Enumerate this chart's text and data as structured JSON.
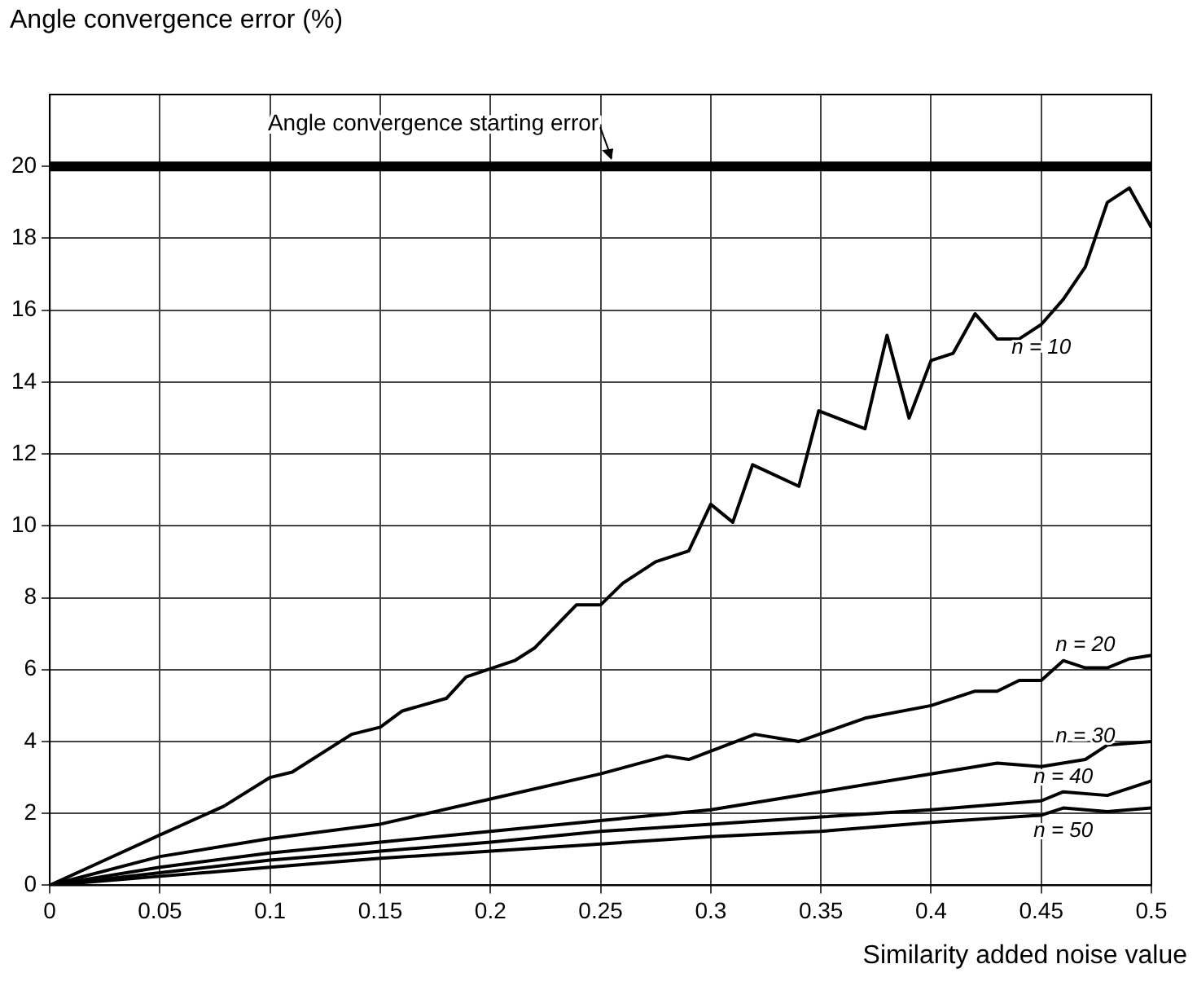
{
  "chart_data": {
    "type": "line",
    "ylabel": "Angle convergence error (%)",
    "xlabel": "Similarity added noise value",
    "xlim": [
      0,
      0.5
    ],
    "xticks": [
      0,
      0.05,
      0.1,
      0.15,
      0.2,
      0.25,
      0.3,
      0.35,
      0.4,
      0.45,
      0.5
    ],
    "ylim": [
      0,
      22
    ],
    "yticks": [
      0,
      2,
      4,
      6,
      8,
      10,
      12,
      14,
      16,
      18,
      20
    ],
    "grid": true,
    "marker": "none",
    "line_style": "solid",
    "series": [
      {
        "name": "n = 10",
        "color": "#000000",
        "x": [
          0,
          0.025,
          0.05,
          0.079,
          0.1,
          0.11,
          0.137,
          0.15,
          0.16,
          0.18,
          0.189,
          0.211,
          0.22,
          0.239,
          0.25,
          0.26,
          0.275,
          0.29,
          0.3,
          0.31,
          0.319,
          0.34,
          0.349,
          0.37,
          0.38,
          0.39,
          0.4,
          0.41,
          0.42,
          0.43,
          0.44,
          0.45,
          0.46,
          0.47,
          0.48,
          0.49,
          0.5
        ],
        "values": [
          0,
          0.7,
          1.4,
          2.2,
          3.0,
          3.15,
          4.2,
          4.4,
          4.85,
          5.2,
          5.8,
          6.25,
          6.6,
          7.8,
          7.8,
          8.4,
          9.0,
          9.3,
          10.6,
          10.1,
          11.7,
          11.1,
          13.2,
          12.7,
          15.3,
          13.0,
          14.6,
          14.8,
          15.9,
          15.2,
          15.2,
          15.6,
          16.3,
          17.2,
          19.0,
          19.4,
          18.3
        ]
      },
      {
        "name": "n = 20",
        "color": "#000000",
        "x": [
          0,
          0.05,
          0.1,
          0.15,
          0.2,
          0.25,
          0.28,
          0.29,
          0.32,
          0.34,
          0.37,
          0.4,
          0.42,
          0.43,
          0.44,
          0.45,
          0.46,
          0.47,
          0.48,
          0.49,
          0.5
        ],
        "values": [
          0,
          0.8,
          1.3,
          1.7,
          2.4,
          3.1,
          3.6,
          3.5,
          4.2,
          4.0,
          4.65,
          5.0,
          5.4,
          5.4,
          5.7,
          5.7,
          6.25,
          6.05,
          6.05,
          6.3,
          6.4
        ]
      },
      {
        "name": "n = 30",
        "color": "#000000",
        "x": [
          0,
          0.05,
          0.1,
          0.15,
          0.2,
          0.25,
          0.3,
          0.35,
          0.4,
          0.43,
          0.45,
          0.47,
          0.48,
          0.5
        ],
        "values": [
          0,
          0.5,
          0.9,
          1.2,
          1.5,
          1.8,
          2.1,
          2.6,
          3.1,
          3.4,
          3.3,
          3.5,
          3.9,
          4.0
        ]
      },
      {
        "name": "n = 40",
        "color": "#000000",
        "x": [
          0,
          0.05,
          0.1,
          0.15,
          0.2,
          0.25,
          0.3,
          0.35,
          0.4,
          0.45,
          0.46,
          0.48,
          0.5
        ],
        "values": [
          0,
          0.35,
          0.7,
          0.95,
          1.2,
          1.5,
          1.7,
          1.9,
          2.1,
          2.35,
          2.6,
          2.5,
          2.9
        ]
      },
      {
        "name": "n = 50",
        "color": "#000000",
        "x": [
          0,
          0.05,
          0.1,
          0.15,
          0.2,
          0.25,
          0.3,
          0.35,
          0.4,
          0.45,
          0.46,
          0.48,
          0.5
        ],
        "values": [
          0,
          0.25,
          0.5,
          0.75,
          0.95,
          1.15,
          1.35,
          1.5,
          1.75,
          1.95,
          2.15,
          2.05,
          2.15
        ]
      }
    ],
    "ref_lines": [
      {
        "axis": "y",
        "value": 20,
        "color": "#000000"
      }
    ],
    "annotations": [
      {
        "text": "Angle convergence starting error",
        "x": 0.255,
        "y": 20
      }
    ]
  }
}
